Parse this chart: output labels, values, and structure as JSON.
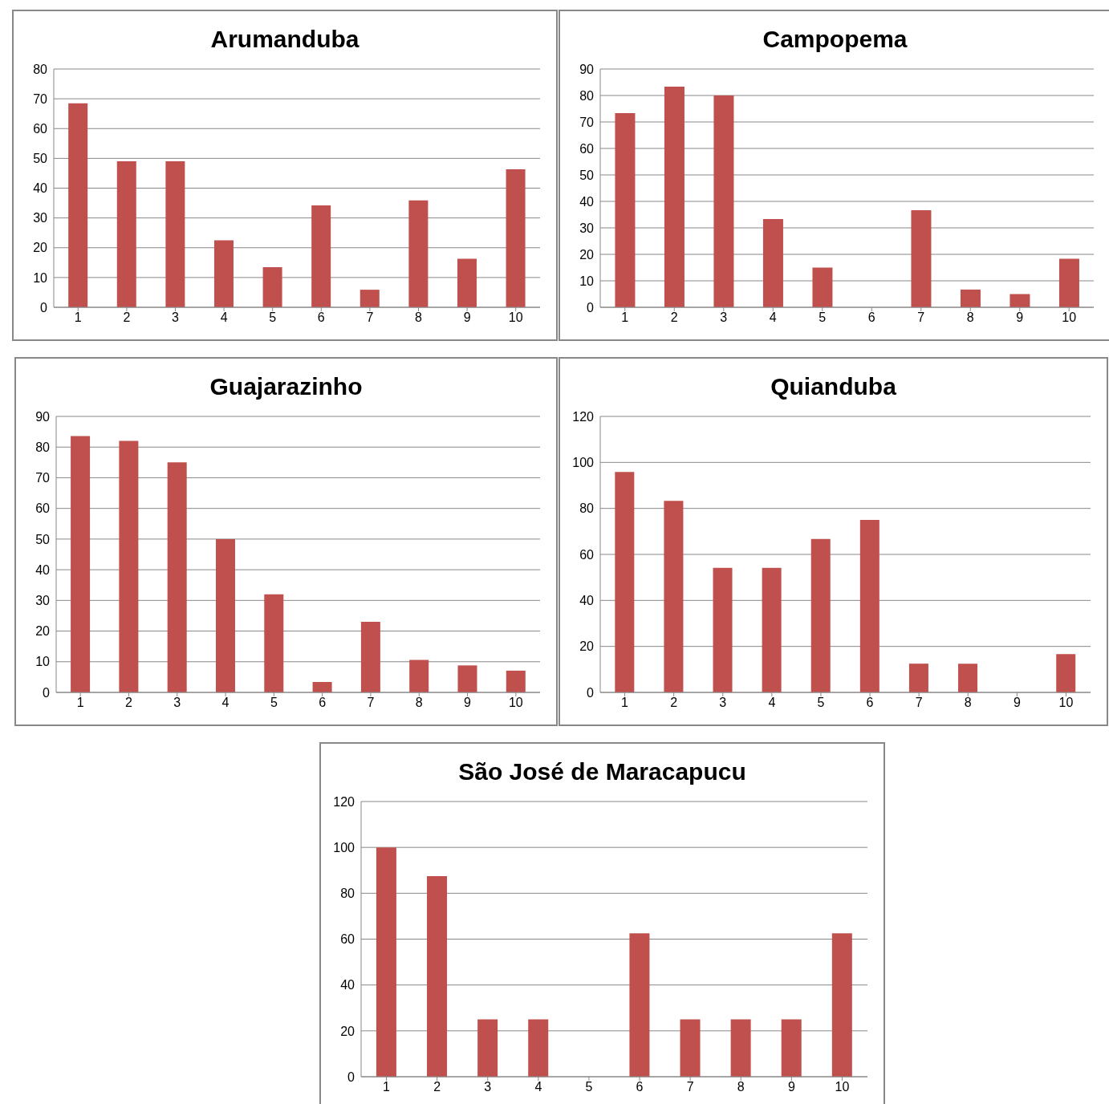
{
  "chart_data": [
    {
      "type": "bar",
      "title": "Arumanduba",
      "categories": [
        "1",
        "2",
        "3",
        "4",
        "5",
        "6",
        "7",
        "8",
        "9",
        "10"
      ],
      "values": [
        68.5,
        49,
        49,
        22.5,
        13.5,
        34.2,
        5.9,
        35.9,
        16.3,
        46.3
      ],
      "color": "#c0504d",
      "ylim": [
        0,
        80
      ],
      "yticks": [
        0,
        10,
        20,
        30,
        40,
        50,
        60,
        70,
        80
      ],
      "grid": "y"
    },
    {
      "type": "bar",
      "title": "Campopema",
      "categories": [
        "1",
        "2",
        "3",
        "4",
        "5",
        "6",
        "7",
        "8",
        "9",
        "10"
      ],
      "values": [
        73.3,
        83.3,
        80,
        33.3,
        15,
        0,
        36.7,
        6.7,
        5,
        18.3
      ],
      "color": "#c0504d",
      "ylim": [
        0,
        90
      ],
      "yticks": [
        0,
        10,
        20,
        30,
        40,
        50,
        60,
        70,
        80,
        90
      ],
      "grid": "y"
    },
    {
      "type": "bar",
      "title": "Guajarazinho",
      "categories": [
        "1",
        "2",
        "3",
        "4",
        "5",
        "6",
        "7",
        "8",
        "9",
        "10"
      ],
      "values": [
        83.6,
        82,
        75,
        50,
        32,
        3.4,
        23,
        10.6,
        8.8,
        7.1
      ],
      "color": "#c0504d",
      "ylim": [
        0,
        90
      ],
      "yticks": [
        0,
        10,
        20,
        30,
        40,
        50,
        60,
        70,
        80,
        90
      ],
      "grid": "y"
    },
    {
      "type": "bar",
      "title": "Quianduba",
      "categories": [
        "1",
        "2",
        "3",
        "4",
        "5",
        "6",
        "7",
        "8",
        "9",
        "10"
      ],
      "values": [
        95.8,
        83.3,
        54.2,
        54.2,
        66.7,
        75,
        12.5,
        12.5,
        0,
        16.7
      ],
      "color": "#c0504d",
      "ylim": [
        0,
        120
      ],
      "yticks": [
        0,
        20,
        40,
        60,
        80,
        100,
        120
      ],
      "grid": "y"
    },
    {
      "type": "bar",
      "title": "São José de Maracapucu",
      "categories": [
        "1",
        "2",
        "3",
        "4",
        "5",
        "6",
        "7",
        "8",
        "9",
        "10"
      ],
      "values": [
        100,
        87.5,
        25,
        25,
        0,
        62.5,
        25,
        25,
        25,
        62.5
      ],
      "color": "#c0504d",
      "ylim": [
        0,
        120
      ],
      "yticks": [
        0,
        20,
        40,
        60,
        80,
        100,
        120
      ],
      "grid": "y"
    }
  ]
}
